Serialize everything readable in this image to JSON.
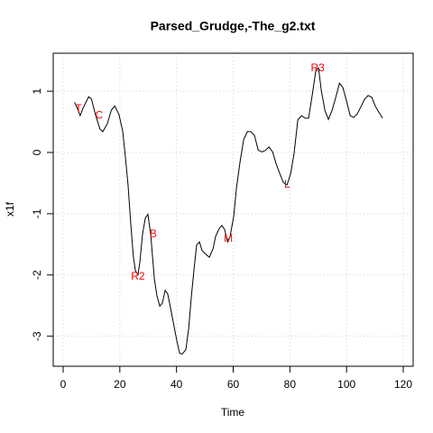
{
  "chart_data": {
    "type": "line",
    "title": "Parsed_Grudge,-The_g2.txt",
    "xlabel": "Time",
    "ylabel": "x1f",
    "color": "#000000",
    "annotation_color": "#ff0000",
    "grid": true,
    "x": [
      4,
      5,
      6,
      7,
      9,
      10,
      11.5,
      13,
      14,
      15.6,
      17,
      18.2,
      19.7,
      21,
      22,
      22.9,
      23.9,
      24.8,
      25.5,
      26.4,
      27.1,
      28,
      29,
      29.9,
      30.9,
      32.2,
      33.1,
      34.1,
      35,
      36,
      36.9,
      37.9,
      38.9,
      40.1,
      41.1,
      42,
      43.3,
      44.3,
      45.2,
      46.2,
      47.1,
      48.1,
      49,
      50.3,
      51.6,
      52.9,
      53.8,
      55.1,
      56,
      57,
      58,
      58.9,
      60.2,
      61.1,
      62.4,
      63.7,
      65,
      66.2,
      67.5,
      68.8,
      70.1,
      71.3,
      72.6,
      73.9,
      75.2,
      76.4,
      77.7,
      79,
      80.3,
      81.5,
      82.8,
      84.1,
      85.4,
      86.6,
      87.9,
      89.2,
      90.1,
      91.1,
      92.4,
      93.6,
      94.9,
      96.2,
      97.5,
      98.7,
      100,
      101.3,
      102.5,
      103.8,
      105.1,
      106.4,
      107.6,
      108.9,
      110.2,
      111.5,
      112.7
    ],
    "values": [
      0.82,
      0.72,
      0.6,
      0.72,
      0.91,
      0.87,
      0.6,
      0.38,
      0.34,
      0.47,
      0.69,
      0.76,
      0.62,
      0.35,
      -0.09,
      -0.53,
      -1.19,
      -1.71,
      -1.93,
      -2.0,
      -1.78,
      -1.34,
      -1.07,
      -1.01,
      -1.34,
      -2.07,
      -2.34,
      -2.51,
      -2.46,
      -2.25,
      -2.31,
      -2.54,
      -2.78,
      -3.07,
      -3.28,
      -3.29,
      -3.22,
      -2.87,
      -2.37,
      -1.9,
      -1.51,
      -1.46,
      -1.6,
      -1.66,
      -1.71,
      -1.57,
      -1.37,
      -1.24,
      -1.19,
      -1.26,
      -1.46,
      -1.37,
      -1.04,
      -0.6,
      -0.16,
      0.21,
      0.34,
      0.34,
      0.28,
      0.04,
      0.01,
      0.03,
      0.09,
      0.01,
      -0.19,
      -0.34,
      -0.49,
      -0.53,
      -0.34,
      -0.01,
      0.53,
      0.6,
      0.56,
      0.56,
      0.94,
      1.35,
      1.38,
      1.01,
      0.68,
      0.54,
      0.69,
      0.9,
      1.13,
      1.06,
      0.84,
      0.6,
      0.57,
      0.63,
      0.75,
      0.87,
      0.93,
      0.9,
      0.75,
      0.65,
      0.56
    ],
    "annotations": [
      {
        "text": "T",
        "x": 5.4,
        "y": 0.71
      },
      {
        "text": "C",
        "x": 12.7,
        "y": 0.6
      },
      {
        "text": "R2",
        "x": 26.4,
        "y": -2.03
      },
      {
        "text": "B",
        "x": 31.8,
        "y": -1.34
      },
      {
        "text": "M",
        "x": 58.3,
        "y": -1.41
      },
      {
        "text": "L",
        "x": 79,
        "y": -0.53
      },
      {
        "text": "R3",
        "x": 89.8,
        "y": 1.37
      }
    ],
    "xlim": [
      -3.5,
      123.5
    ],
    "xticks": [
      0,
      20,
      40,
      60,
      80,
      100,
      120
    ],
    "ylim": [
      -3.49,
      1.62
    ],
    "yticks": [
      -3,
      -2,
      -1,
      0,
      1
    ]
  }
}
